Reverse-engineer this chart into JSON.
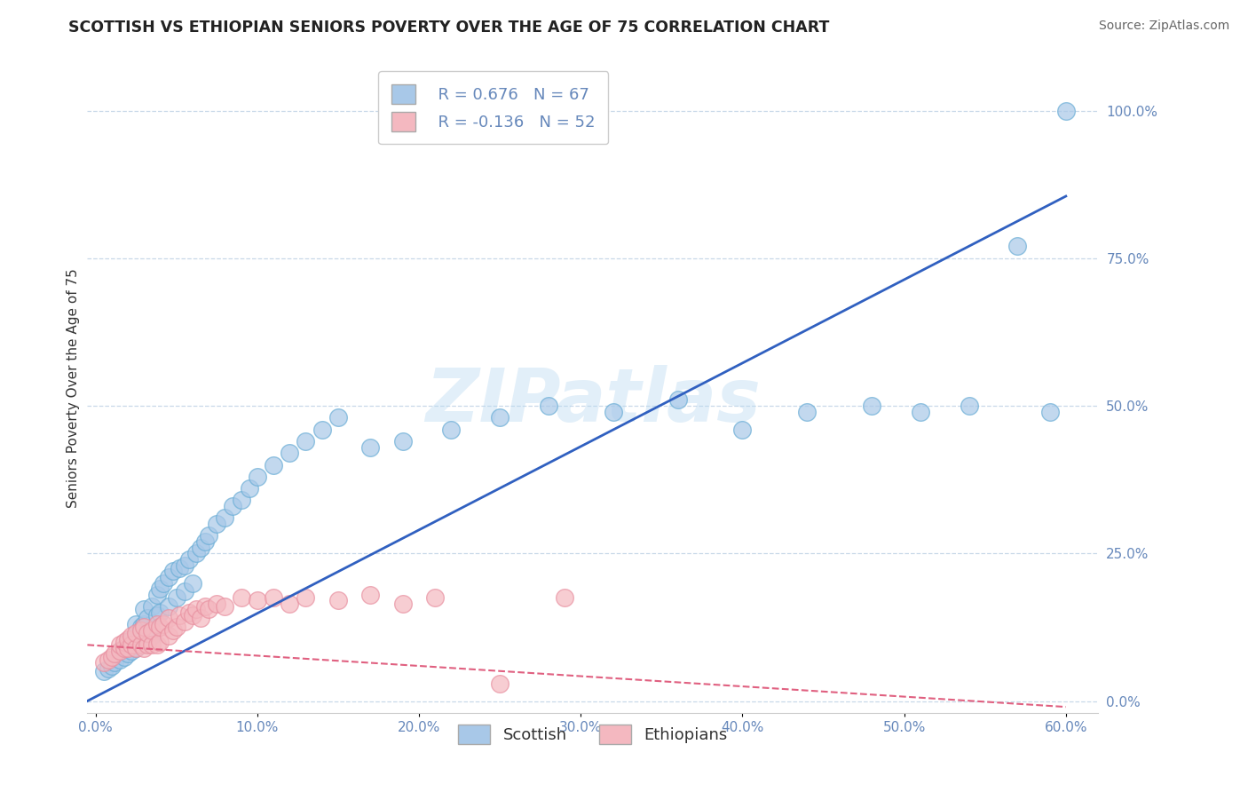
{
  "title": "SCOTTISH VS ETHIOPIAN SENIORS POVERTY OVER THE AGE OF 75 CORRELATION CHART",
  "source": "Source: ZipAtlas.com",
  "ylabel": "Seniors Poverty Over the Age of 75",
  "xlim": [
    -0.005,
    0.62
  ],
  "ylim": [
    -0.02,
    1.08
  ],
  "xticks": [
    0.0,
    0.1,
    0.2,
    0.3,
    0.4,
    0.5,
    0.6
  ],
  "xticklabels": [
    "0.0%",
    "10.0%",
    "20.0%",
    "30.0%",
    "40.0%",
    "50.0%",
    "60.0%"
  ],
  "yticks": [
    0.0,
    0.25,
    0.5,
    0.75,
    1.0
  ],
  "yticklabels": [
    "0.0%",
    "25.0%",
    "50.0%",
    "75.0%",
    "100.0%"
  ],
  "scottish_color": "#a8c8e8",
  "scottish_edge_color": "#6baed6",
  "ethiopian_color": "#f4b8c0",
  "ethiopian_edge_color": "#e890a0",
  "scottish_line_color": "#3060c0",
  "ethiopian_line_color": "#e06080",
  "r_scottish": 0.676,
  "n_scottish": 67,
  "r_ethiopian": -0.136,
  "n_ethiopian": 52,
  "watermark": "ZIPatlas",
  "background_color": "#ffffff",
  "grid_color": "#c8d8e8",
  "tick_color": "#6688bb",
  "scottish_line_y0": 0.0,
  "scottish_line_y1": 0.855,
  "ethiopian_line_y0": 0.095,
  "ethiopian_line_y1": -0.01,
  "scottish_x": [
    0.005,
    0.008,
    0.01,
    0.012,
    0.015,
    0.015,
    0.018,
    0.018,
    0.02,
    0.02,
    0.022,
    0.022,
    0.025,
    0.025,
    0.025,
    0.028,
    0.028,
    0.03,
    0.03,
    0.03,
    0.032,
    0.035,
    0.035,
    0.038,
    0.038,
    0.04,
    0.04,
    0.042,
    0.045,
    0.045,
    0.048,
    0.05,
    0.052,
    0.055,
    0.055,
    0.058,
    0.06,
    0.062,
    0.065,
    0.068,
    0.07,
    0.075,
    0.08,
    0.085,
    0.09,
    0.095,
    0.1,
    0.11,
    0.12,
    0.13,
    0.14,
    0.15,
    0.17,
    0.19,
    0.22,
    0.25,
    0.28,
    0.32,
    0.36,
    0.4,
    0.44,
    0.48,
    0.51,
    0.54,
    0.57,
    0.59,
    0.6
  ],
  "scottish_y": [
    0.05,
    0.055,
    0.06,
    0.065,
    0.07,
    0.085,
    0.075,
    0.09,
    0.08,
    0.1,
    0.085,
    0.105,
    0.09,
    0.11,
    0.13,
    0.095,
    0.125,
    0.1,
    0.13,
    0.155,
    0.14,
    0.11,
    0.16,
    0.145,
    0.18,
    0.15,
    0.19,
    0.2,
    0.16,
    0.21,
    0.22,
    0.175,
    0.225,
    0.185,
    0.23,
    0.24,
    0.2,
    0.25,
    0.26,
    0.27,
    0.28,
    0.3,
    0.31,
    0.33,
    0.34,
    0.36,
    0.38,
    0.4,
    0.42,
    0.44,
    0.46,
    0.48,
    0.43,
    0.44,
    0.46,
    0.48,
    0.5,
    0.49,
    0.51,
    0.46,
    0.49,
    0.5,
    0.49,
    0.5,
    0.77,
    0.49,
    1.0
  ],
  "ethiopian_x": [
    0.005,
    0.008,
    0.01,
    0.012,
    0.015,
    0.015,
    0.018,
    0.018,
    0.02,
    0.02,
    0.022,
    0.022,
    0.025,
    0.025,
    0.028,
    0.028,
    0.03,
    0.03,
    0.032,
    0.032,
    0.035,
    0.035,
    0.038,
    0.038,
    0.04,
    0.04,
    0.042,
    0.045,
    0.045,
    0.048,
    0.05,
    0.052,
    0.055,
    0.058,
    0.06,
    0.062,
    0.065,
    0.068,
    0.07,
    0.075,
    0.08,
    0.09,
    0.1,
    0.11,
    0.12,
    0.13,
    0.15,
    0.17,
    0.19,
    0.21,
    0.25,
    0.29
  ],
  "ethiopian_y": [
    0.065,
    0.07,
    0.075,
    0.08,
    0.085,
    0.095,
    0.09,
    0.1,
    0.09,
    0.105,
    0.095,
    0.11,
    0.09,
    0.115,
    0.095,
    0.12,
    0.09,
    0.125,
    0.095,
    0.115,
    0.095,
    0.12,
    0.095,
    0.13,
    0.1,
    0.125,
    0.13,
    0.11,
    0.14,
    0.12,
    0.125,
    0.145,
    0.135,
    0.15,
    0.145,
    0.155,
    0.14,
    0.16,
    0.155,
    0.165,
    0.16,
    0.175,
    0.17,
    0.175,
    0.165,
    0.175,
    0.17,
    0.18,
    0.165,
    0.175,
    0.03,
    0.175
  ],
  "title_fontsize": 12.5,
  "axis_label_fontsize": 11,
  "tick_fontsize": 11,
  "legend_fontsize": 13,
  "watermark_fontsize": 60,
  "source_fontsize": 10
}
